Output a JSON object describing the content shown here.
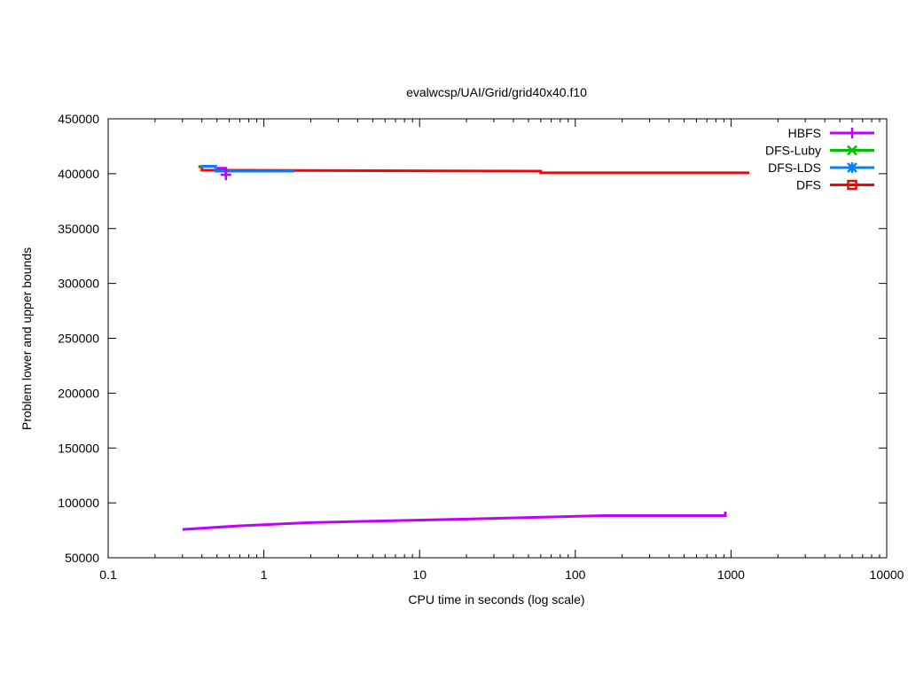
{
  "chart_data": {
    "type": "line",
    "title": "evalwcsp/UAI/Grid/grid40x40.f10",
    "xlabel": "CPU time in seconds (log scale)",
    "ylabel": "Problem lower and upper bounds",
    "xscale": "log",
    "xlim": [
      0.1,
      10000
    ],
    "ylim": [
      50000,
      450000
    ],
    "xticks": [
      0.1,
      1,
      10,
      100,
      1000,
      10000
    ],
    "xtick_labels": [
      "0.1",
      "1",
      "10",
      "100",
      "1000",
      "10000"
    ],
    "yticks": [
      50000,
      100000,
      150000,
      200000,
      250000,
      300000,
      350000,
      400000,
      450000
    ],
    "ytick_labels": [
      "50000",
      "100000",
      "150000",
      "200000",
      "250000",
      "300000",
      "350000",
      "400000",
      "450000"
    ],
    "legend_position": "top-right",
    "series": [
      {
        "name": "HBFS",
        "color": "#c000ff",
        "marker": "plus",
        "step": true,
        "segments": [
          {
            "x": [
              0.3,
              0.678,
              1.96,
              20,
              152,
              919,
              919
            ],
            "y": [
              75800,
              79000,
              82000,
              85200,
              88400,
              88400,
              92000
            ]
          },
          {
            "x": [
              0.5,
              0.57,
              0.57
            ],
            "y": [
              405000,
              405000,
              400000
            ]
          }
        ],
        "marker_points": [
          {
            "x": 0.57,
            "y": 399000
          }
        ]
      },
      {
        "name": "DFS-Luby",
        "color": "#00c000",
        "marker": "x",
        "step": true,
        "segments": [
          {
            "x": [
              0.39,
              0.4
            ],
            "y": [
              406500,
              406500
            ]
          }
        ],
        "marker_points": []
      },
      {
        "name": "DFS-LDS",
        "color": "#0080ff",
        "marker": "star",
        "step": true,
        "segments": [
          {
            "x": [
              0.39,
              0.49,
              0.49,
              1.57
            ],
            "y": [
              406800,
              406800,
              402300,
              402300
            ]
          }
        ],
        "marker_points": []
      },
      {
        "name": "DFS",
        "color": "#ff0000",
        "marker": "square",
        "step": true,
        "segments": [
          {
            "x": [
              0.38,
              0.4,
              0.4,
              60,
              60,
              1310
            ],
            "y": [
              406400,
              406400,
              403200,
              402300,
              400800,
              400800
            ]
          }
        ],
        "marker_points": []
      }
    ]
  }
}
